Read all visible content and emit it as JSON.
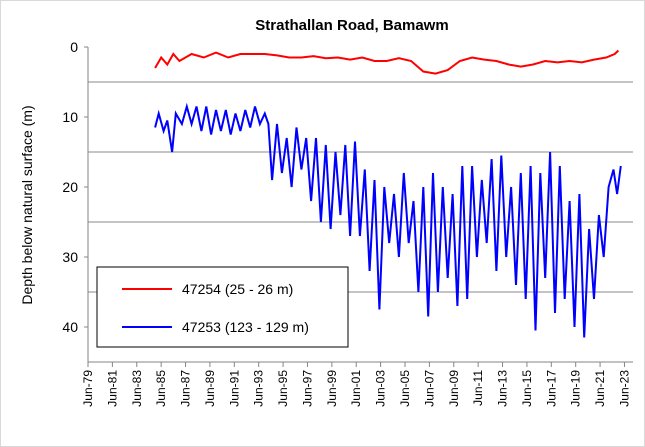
{
  "chart_data": {
    "type": "line",
    "title": "Strathallan Road, Bamawm",
    "y_label": "Depth below natural surface (m)",
    "y_inverted": true,
    "ylim": [
      0,
      45
    ],
    "yticks": [
      0,
      10,
      20,
      30,
      40
    ],
    "grid_yticks": [
      5,
      15,
      25,
      35
    ],
    "xlim": [
      1979.5,
      2024.2
    ],
    "xticks": [
      {
        "value": 1979.5,
        "label": "Jun-79"
      },
      {
        "value": 1981.5,
        "label": "Jun-81"
      },
      {
        "value": 1983.5,
        "label": "Jun-83"
      },
      {
        "value": 1985.5,
        "label": "Jun-85"
      },
      {
        "value": 1987.5,
        "label": "Jun-87"
      },
      {
        "value": 1989.5,
        "label": "Jun-89"
      },
      {
        "value": 1991.5,
        "label": "Jun-91"
      },
      {
        "value": 1993.5,
        "label": "Jun-93"
      },
      {
        "value": 1995.5,
        "label": "Jun-95"
      },
      {
        "value": 1997.5,
        "label": "Jun-97"
      },
      {
        "value": 1999.5,
        "label": "Jun-99"
      },
      {
        "value": 2001.5,
        "label": "Jun-01"
      },
      {
        "value": 2003.5,
        "label": "Jun-03"
      },
      {
        "value": 2005.5,
        "label": "Jun-05"
      },
      {
        "value": 2007.5,
        "label": "Jun-07"
      },
      {
        "value": 2009.5,
        "label": "Jun-09"
      },
      {
        "value": 2011.5,
        "label": "Jun-11"
      },
      {
        "value": 2013.5,
        "label": "Jun-13"
      },
      {
        "value": 2015.5,
        "label": "Jun-15"
      },
      {
        "value": 2017.5,
        "label": "Jun-17"
      },
      {
        "value": 2019.5,
        "label": "Jun-19"
      },
      {
        "value": 2021.5,
        "label": "Jun-21"
      },
      {
        "value": 2023.5,
        "label": "Jun-23"
      }
    ],
    "legend_position": "lower left",
    "series": [
      {
        "name": "47254 (25 - 26 m)",
        "color": "#ff0000",
        "x": [
          1985.0,
          1985.5,
          1986.0,
          1986.5,
          1987.0,
          1988.0,
          1989.0,
          1990.0,
          1991.0,
          1992.0,
          1993.0,
          1994.0,
          1995.0,
          1996.0,
          1997.0,
          1998.0,
          1999.0,
          2000.0,
          2001.0,
          2002.0,
          2003.0,
          2004.0,
          2005.0,
          2006.0,
          2007.0,
          2008.0,
          2009.0,
          2010.0,
          2011.0,
          2012.0,
          2013.0,
          2014.0,
          2015.0,
          2016.0,
          2017.0,
          2018.0,
          2019.0,
          2020.0,
          2021.0,
          2022.0,
          2022.7,
          2023.0
        ],
        "values": [
          3,
          1.5,
          2.5,
          1,
          2,
          1,
          1.5,
          0.8,
          1.5,
          1,
          1,
          1,
          1.2,
          1.5,
          1.5,
          1.3,
          1.6,
          1.5,
          1.8,
          1.5,
          2,
          2,
          1.6,
          2,
          3.5,
          3.8,
          3.3,
          2,
          1.5,
          1.8,
          2,
          2.5,
          2.8,
          2.5,
          2,
          2.2,
          2,
          2.2,
          1.8,
          1.5,
          1,
          0.5
        ]
      },
      {
        "name": "47253 (123 - 129 m)",
        "color": "#0000ff",
        "x": [
          1985.0,
          1985.3,
          1985.7,
          1986.0,
          1986.4,
          1986.7,
          1987.2,
          1987.6,
          1988.0,
          1988.4,
          1988.8,
          1989.2,
          1989.6,
          1990.0,
          1990.4,
          1990.8,
          1991.2,
          1991.6,
          1992.0,
          1992.4,
          1992.8,
          1993.2,
          1993.6,
          1994.0,
          1994.3,
          1994.6,
          1995.0,
          1995.4,
          1995.8,
          1996.2,
          1996.6,
          1997.0,
          1997.4,
          1997.8,
          1998.2,
          1998.6,
          1999.0,
          1999.4,
          1999.8,
          2000.2,
          2000.6,
          2001.0,
          2001.4,
          2001.8,
          2002.2,
          2002.6,
          2003.0,
          2003.4,
          2003.8,
          2004.2,
          2004.6,
          2005.0,
          2005.4,
          2005.8,
          2006.2,
          2006.6,
          2007.0,
          2007.4,
          2007.8,
          2008.2,
          2008.6,
          2009.0,
          2009.4,
          2009.8,
          2010.2,
          2010.6,
          2011.0,
          2011.4,
          2011.8,
          2012.2,
          2012.6,
          2013.0,
          2013.4,
          2013.8,
          2014.2,
          2014.6,
          2015.0,
          2015.4,
          2015.8,
          2016.2,
          2016.6,
          2017.0,
          2017.4,
          2017.8,
          2018.2,
          2018.6,
          2019.0,
          2019.4,
          2019.8,
          2020.2,
          2020.6,
          2021.0,
          2021.4,
          2021.8,
          2022.2,
          2022.6,
          2022.9,
          2023.2
        ],
        "values": [
          11.5,
          9.5,
          12,
          10.5,
          15,
          9.5,
          11,
          8.5,
          11,
          8.5,
          12,
          8.5,
          12.5,
          9,
          12,
          9,
          12.5,
          9.5,
          12,
          9,
          11.5,
          8.5,
          11,
          9.5,
          11,
          19,
          11,
          18,
          13,
          20,
          11.5,
          17.5,
          13,
          22,
          13,
          25,
          14,
          26,
          15,
          24,
          14,
          27,
          13.5,
          27,
          17.5,
          32,
          19,
          37.5,
          20,
          28,
          21,
          30,
          18,
          28,
          22,
          35,
          20,
          38.5,
          18,
          35,
          20,
          33,
          21,
          37,
          17,
          36,
          17,
          30,
          19,
          28,
          16,
          32,
          15.5,
          30,
          20,
          34,
          18,
          36,
          17,
          40.5,
          18,
          33,
          15,
          38,
          17,
          36,
          22,
          40,
          21,
          41.5,
          26,
          36,
          24,
          30,
          20,
          17.5,
          21,
          17
        ]
      }
    ]
  }
}
